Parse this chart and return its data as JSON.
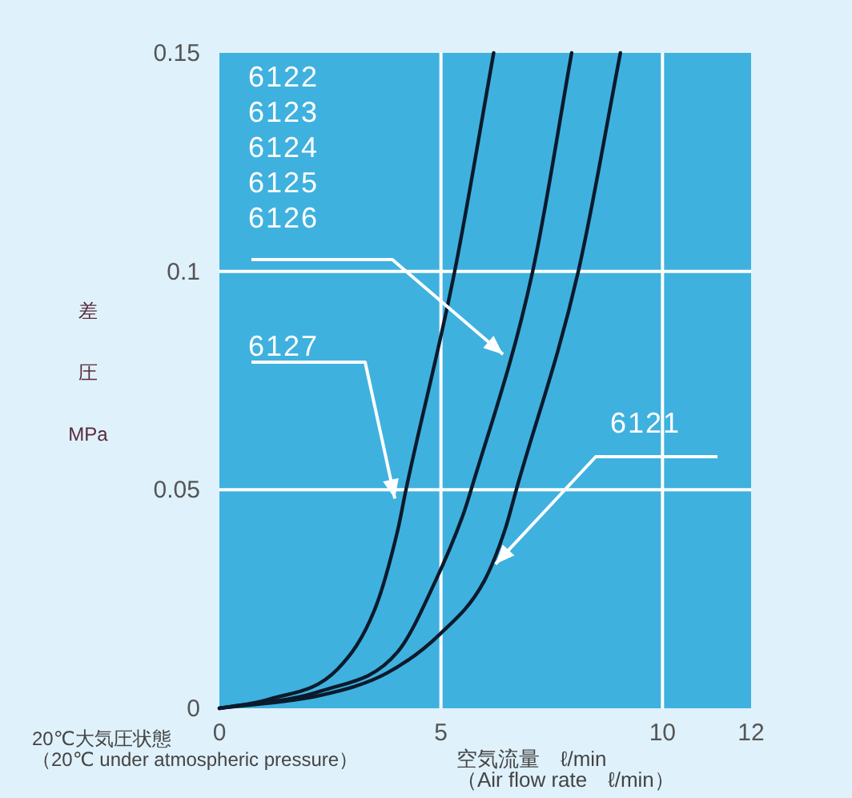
{
  "chart_data": {
    "type": "line",
    "xlabel": "空気流量　ℓ/min\n（Air flow rate　ℓ/min）",
    "ylabel": "差圧MPa",
    "xlim": [
      0,
      12
    ],
    "xticks": [
      0,
      5,
      10,
      12
    ],
    "ylim": [
      0,
      0.15
    ],
    "yticks": [
      0,
      0.05,
      0.1,
      0.15
    ],
    "grid": true,
    "series": [
      {
        "color": "#0b1a2c",
        "x": [
          0,
          1.1,
          2.67,
          3.52,
          4.03,
          4.21,
          5.31,
          6.19
        ],
        "values": [
          0,
          0.002,
          0.009,
          0.023,
          0.041,
          0.05,
          0.1,
          0.15
        ]
      },
      {
        "color": "#0b1a2c",
        "x": [
          0,
          2.31,
          4.03,
          4.87,
          5.49,
          5.68,
          7.07,
          7.95
        ],
        "values": [
          0,
          0.004,
          0.013,
          0.029,
          0.044,
          0.05,
          0.1,
          0.15
        ]
      },
      {
        "color": "#0b1a2c",
        "x": [
          0,
          2.3,
          3.77,
          4.98,
          5.97,
          6.45,
          6.7,
          8.1,
          9.05
        ],
        "values": [
          0,
          0.003,
          0.008,
          0.017,
          0.029,
          0.041,
          0.05,
          0.1,
          0.15
        ]
      }
    ],
    "annotations": [
      {
        "text": "6122\n6123\n6124\n6125\n6126",
        "x": 6.4,
        "y": 0.081
      },
      {
        "text": "6127",
        "x": 3.96,
        "y": 0.048
      },
      {
        "text": "6121",
        "x": 6.23,
        "y": 0.033
      },
      "20℃大気圧状態",
      "（20℃ under atmospheric pressure）"
    ]
  }
}
